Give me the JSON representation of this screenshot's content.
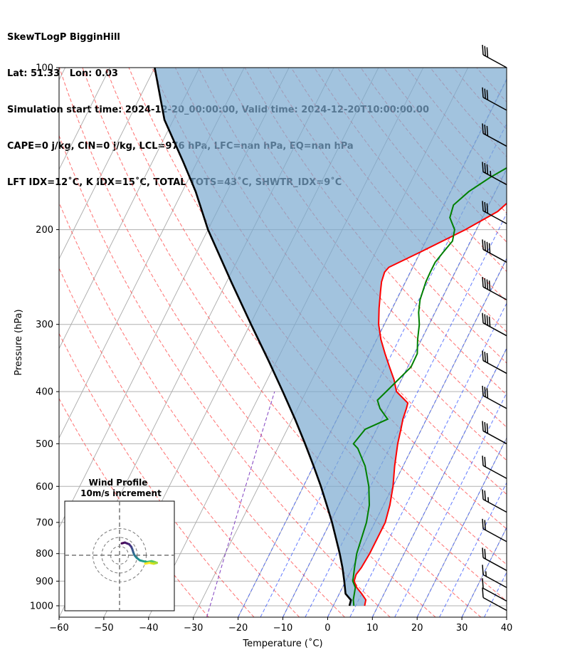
{
  "header": {
    "line1": "SkewTLogP BigginHill",
    "line2": "Lat: 51.33   Lon: 0.03",
    "line3": "Simulation start time: 2024-12-20_00:00:00, Valid time: 2024-12-20T10:00:00.00",
    "line4": "CAPE=0 j/kg, CIN=0 j/kg, LCL=976 hPa, LFC=nan hPa, EQ=nan hPa",
    "line5": "LFT IDX=12˚C, K IDX=15˚C, TOTAL TOTS=43˚C, SHWTR_IDX=9˚C"
  },
  "chart_data": {
    "type": "line",
    "title": "SkewTLogP BigginHill",
    "xlabel": "Temperature (˚C)",
    "ylabel": "Pressure (hPa)",
    "xlim": [
      -60,
      40
    ],
    "ylim": [
      1050,
      100
    ],
    "yscale": "log",
    "x_ticks": [
      "−60",
      "−50",
      "−40",
      "−30",
      "−20",
      "−10",
      "0",
      "10",
      "20",
      "30",
      "40"
    ],
    "y_ticks": [
      "100",
      "200",
      "300",
      "400",
      "500",
      "600",
      "700",
      "800",
      "900",
      "1000"
    ],
    "series": [
      {
        "key": "temperature",
        "color": "#ff0000",
        "points": [
          [
            7.0,
            1000
          ],
          [
            6.6,
            975
          ],
          [
            5.0,
            950
          ],
          [
            3.2,
            925
          ],
          [
            1.9,
            900
          ],
          [
            1.6,
            875
          ],
          [
            2.0,
            850
          ],
          [
            2.3,
            800
          ],
          [
            2.3,
            700
          ],
          [
            1.4,
            650
          ],
          [
            0.0,
            600
          ],
          [
            -1.9,
            550
          ],
          [
            -3.7,
            500
          ],
          [
            -4.6,
            470
          ],
          [
            -5.3,
            450
          ],
          [
            -5.7,
            430
          ],
          [
            -6.0,
            420
          ],
          [
            -9.8,
            400
          ],
          [
            -11.7,
            380
          ],
          [
            -14.1,
            360
          ],
          [
            -16.6,
            340
          ],
          [
            -19.1,
            320
          ],
          [
            -21.3,
            300
          ],
          [
            -23.0,
            280
          ],
          [
            -24.6,
            260
          ],
          [
            -25.4,
            250
          ],
          [
            -25.8,
            240
          ],
          [
            -25.4,
            235
          ],
          [
            -20.0,
            220
          ],
          [
            -12.5,
            200
          ],
          [
            -7.3,
            185
          ],
          [
            -4.6,
            170
          ],
          [
            -3.9,
            160
          ],
          [
            -1.4,
            150
          ],
          [
            0.6,
            140
          ],
          [
            2.6,
            130
          ],
          [
            4.8,
            120
          ],
          [
            7.4,
            110
          ],
          [
            9.1,
            100
          ]
        ]
      },
      {
        "key": "dewpoint",
        "color": "#008000",
        "points": [
          [
            4.6,
            1000
          ],
          [
            3.8,
            975
          ],
          [
            2.9,
            925
          ],
          [
            1.6,
            900
          ],
          [
            0.5,
            850
          ],
          [
            -0.6,
            800
          ],
          [
            -1.9,
            700
          ],
          [
            -3.2,
            650
          ],
          [
            -5.4,
            600
          ],
          [
            -8.5,
            550
          ],
          [
            -12.1,
            510
          ],
          [
            -13.6,
            500
          ],
          [
            -12.6,
            470
          ],
          [
            -8.7,
            450
          ],
          [
            -11.6,
            430
          ],
          [
            -13.1,
            415
          ],
          [
            -12.1,
            400
          ],
          [
            -9.3,
            360
          ],
          [
            -9.4,
            340
          ],
          [
            -10.9,
            320
          ],
          [
            -12.2,
            300
          ],
          [
            -13.7,
            285
          ],
          [
            -14.8,
            270
          ],
          [
            -15.5,
            250
          ],
          [
            -15.6,
            240
          ],
          [
            -15.6,
            230
          ],
          [
            -14.9,
            220
          ],
          [
            -14.1,
            210
          ],
          [
            -14.9,
            200
          ],
          [
            -17.3,
            190
          ],
          [
            -17.9,
            180
          ],
          [
            -16.0,
            170
          ],
          [
            -12.8,
            160
          ],
          [
            -8.6,
            150
          ],
          [
            -4.6,
            140
          ],
          [
            -0.9,
            130
          ],
          [
            3.1,
            120
          ],
          [
            6.4,
            110
          ],
          [
            10.0,
            100
          ]
        ]
      },
      {
        "key": "parcel",
        "color": "#000000",
        "points": [
          [
            3.6,
            1000
          ],
          [
            3.3,
            976
          ],
          [
            1.4,
            950
          ],
          [
            -0.3,
            900
          ],
          [
            -2.2,
            850
          ],
          [
            -4.4,
            800
          ],
          [
            -6.9,
            750
          ],
          [
            -9.6,
            700
          ],
          [
            -12.7,
            650
          ],
          [
            -16.1,
            600
          ],
          [
            -20.0,
            550
          ],
          [
            -24.4,
            500
          ],
          [
            -29.4,
            450
          ],
          [
            -35.2,
            400
          ],
          [
            -41.9,
            350
          ],
          [
            -49.8,
            300
          ],
          [
            -59.0,
            250
          ],
          [
            -70.0,
            200
          ],
          [
            -77.0,
            170
          ],
          [
            -83.0,
            150
          ],
          [
            -92.0,
            125
          ],
          [
            -100.0,
            100
          ]
        ]
      }
    ],
    "wind_barbs": [
      {
        "p": 100,
        "speed_kt": 30,
        "dir_deg": 240
      },
      {
        "p": 120,
        "speed_kt": 30,
        "dir_deg": 240
      },
      {
        "p": 140,
        "speed_kt": 30,
        "dir_deg": 240
      },
      {
        "p": 165,
        "speed_kt": 35,
        "dir_deg": 240
      },
      {
        "p": 195,
        "speed_kt": 30,
        "dir_deg": 240
      },
      {
        "p": 230,
        "speed_kt": 40,
        "dir_deg": 240
      },
      {
        "p": 270,
        "speed_kt": 40,
        "dir_deg": 240
      },
      {
        "p": 315,
        "speed_kt": 40,
        "dir_deg": 240
      },
      {
        "p": 370,
        "speed_kt": 30,
        "dir_deg": 240
      },
      {
        "p": 430,
        "speed_kt": 30,
        "dir_deg": 240
      },
      {
        "p": 500,
        "speed_kt": 30,
        "dir_deg": 240
      },
      {
        "p": 580,
        "speed_kt": 20,
        "dir_deg": 240
      },
      {
        "p": 670,
        "speed_kt": 25,
        "dir_deg": 240
      },
      {
        "p": 760,
        "speed_kt": 20,
        "dir_deg": 250
      },
      {
        "p": 860,
        "speed_kt": 20,
        "dir_deg": 260
      },
      {
        "p": 925,
        "speed_kt": 15,
        "dir_deg": 270
      },
      {
        "p": 980,
        "speed_kt": 10,
        "dir_deg": 290
      },
      {
        "p": 1020,
        "speed_kt": 10,
        "dir_deg": 300
      }
    ],
    "hodograph": {
      "title": "Wind Profile",
      "subtitle": "10m/s increment",
      "rings_ms": [
        10,
        20,
        30
      ],
      "points": [
        [
          2,
          14
        ],
        [
          5,
          15
        ],
        [
          9,
          13
        ],
        [
          11,
          10
        ],
        [
          12,
          7
        ],
        [
          13,
          3
        ],
        [
          14,
          0
        ],
        [
          16,
          -3
        ],
        [
          19,
          -6
        ],
        [
          22,
          -7
        ],
        [
          26,
          -8
        ],
        [
          30,
          -7
        ],
        [
          33,
          -8
        ],
        [
          35,
          -9
        ],
        [
          32,
          -10
        ],
        [
          28,
          -9
        ],
        [
          24,
          -10
        ]
      ]
    }
  }
}
